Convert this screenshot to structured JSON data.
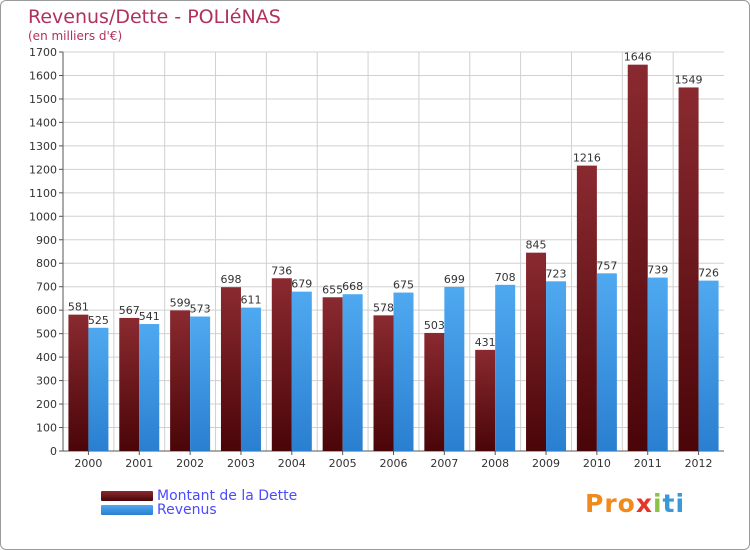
{
  "chart_data": {
    "type": "bar",
    "title": "Revenus/Dette - POLIéNAS",
    "subtitle": "(en milliers d'€)",
    "xlabel": "",
    "ylabel": "",
    "ylim": [
      0,
      1700
    ],
    "yticks": [
      0,
      100,
      200,
      300,
      400,
      500,
      600,
      700,
      800,
      900,
      1000,
      1100,
      1200,
      1300,
      1400,
      1500,
      1600,
      1700
    ],
    "grid": true,
    "categories": [
      "2000",
      "2001",
      "2002",
      "2003",
      "2004",
      "2005",
      "2006",
      "2007",
      "2008",
      "2009",
      "2010",
      "2011",
      "2012"
    ],
    "series": [
      {
        "name": "Montant de la Dette",
        "color": "#7a1a1f",
        "values": [
          581,
          567,
          599,
          698,
          736,
          655,
          578,
          503,
          431,
          845,
          1216,
          1646,
          1549
        ]
      },
      {
        "name": "Revenus",
        "color": "#3d9be9",
        "values": [
          525,
          541,
          573,
          611,
          679,
          668,
          675,
          699,
          708,
          723,
          757,
          739,
          726
        ]
      }
    ],
    "legend_position": "bottom-left"
  },
  "logo": {
    "parts": [
      "Pro",
      "x",
      "i",
      "ti"
    ]
  }
}
